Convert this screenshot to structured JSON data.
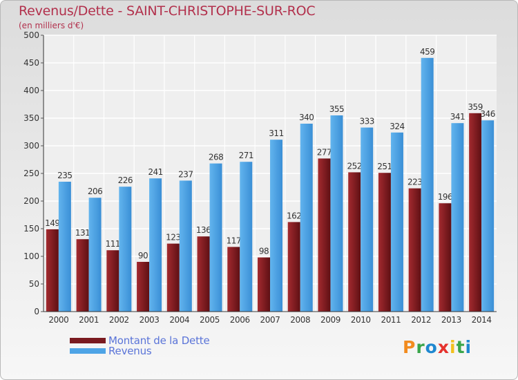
{
  "title": "Revenus/Dette - SAINT-CHRISTOPHE-SUR-ROC",
  "unit_label": "(en milliers d'€)",
  "logo": {
    "text": "Proxiti",
    "colors": [
      "#f28b1e",
      "#3aa54a",
      "#1e88d0",
      "#e5322d",
      "#f2c01e",
      "#3aa54a",
      "#1e88d0"
    ]
  },
  "colors": {
    "dette": "#7a1a1f",
    "revenus": "#4ea4e6",
    "title": "#b2304c",
    "legend_text": "#5a74d8"
  },
  "chart_data": {
    "type": "bar",
    "categories": [
      "2000",
      "2001",
      "2002",
      "2003",
      "2004",
      "2005",
      "2006",
      "2007",
      "2008",
      "2009",
      "2010",
      "2011",
      "2012",
      "2013",
      "2014"
    ],
    "series": [
      {
        "name": "Montant de la Dette",
        "values": [
          149,
          131,
          111,
          90,
          123,
          136,
          117,
          98,
          162,
          277,
          252,
          251,
          223,
          196,
          359
        ]
      },
      {
        "name": "Revenus",
        "values": [
          235,
          206,
          226,
          241,
          237,
          268,
          271,
          311,
          340,
          355,
          333,
          324,
          459,
          341,
          346
        ]
      }
    ],
    "yticks": [
      0,
      50,
      100,
      150,
      200,
      250,
      300,
      350,
      400,
      450,
      500
    ],
    "ylim": [
      0,
      500
    ],
    "grid": true,
    "legend_position": "bottom-left"
  }
}
